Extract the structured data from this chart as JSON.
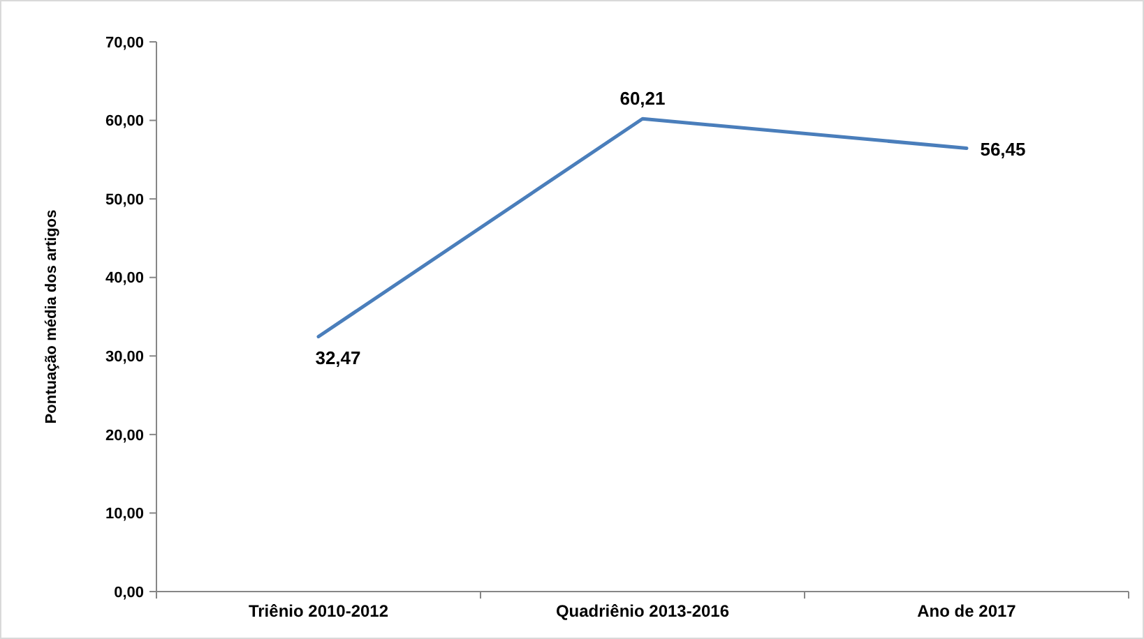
{
  "chart_data": {
    "type": "line",
    "ylabel": "Pontuação média dos artigos",
    "categories": [
      "Triênio 2010-2012",
      "Quadriênio 2013-2016",
      "Ano de 2017"
    ],
    "series": [
      {
        "color": "#4a7ebb",
        "values": [
          32.47,
          60.21,
          56.45
        ],
        "value_labels": [
          "32,47",
          "60,21",
          "56,45"
        ]
      }
    ],
    "ylim": [
      0,
      70
    ],
    "yticks": [
      {
        "value": 0,
        "label": "0,00"
      },
      {
        "value": 10,
        "label": "10,00"
      },
      {
        "value": 20,
        "label": "20,00"
      },
      {
        "value": 30,
        "label": "30,00"
      },
      {
        "value": 40,
        "label": "40,00"
      },
      {
        "value": 50,
        "label": "50,00"
      },
      {
        "value": 60,
        "label": "60,00"
      },
      {
        "value": 70,
        "label": "70,00"
      }
    ],
    "marker": "none",
    "line_style": "solid"
  }
}
